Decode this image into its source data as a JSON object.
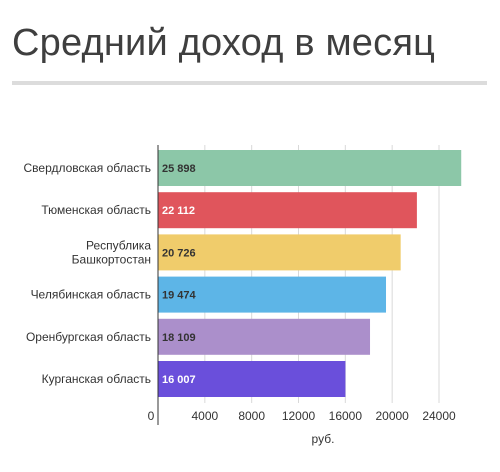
{
  "title": "Средний доход в месяц",
  "chart_data": {
    "type": "bar",
    "orientation": "horizontal",
    "categories": [
      [
        "Свердловская область"
      ],
      [
        "Тюменская область"
      ],
      [
        "Республика",
        "Башкортостан"
      ],
      [
        "Челябинская область"
      ],
      [
        "Оренбургская область"
      ],
      [
        "Курганская область"
      ]
    ],
    "values": [
      25898,
      22112,
      20726,
      19474,
      18109,
      16007
    ],
    "value_labels": [
      "25 898",
      "22 112",
      "20 726",
      "19 474",
      "18 109",
      "16 007"
    ],
    "colors": [
      "#8cc7a8",
      "#e0555c",
      "#f0cc6b",
      "#5db5e7",
      "#ab8fcb",
      "#6a4fdb"
    ],
    "label_colors": [
      "#333333",
      "#ffffff",
      "#333333",
      "#333333",
      "#333333",
      "#ffffff"
    ],
    "x_ticks": [
      0,
      4000,
      8000,
      12000,
      16000,
      20000,
      24000
    ],
    "xlim": [
      0,
      27000
    ],
    "xlabel": "руб.",
    "grid": true
  }
}
